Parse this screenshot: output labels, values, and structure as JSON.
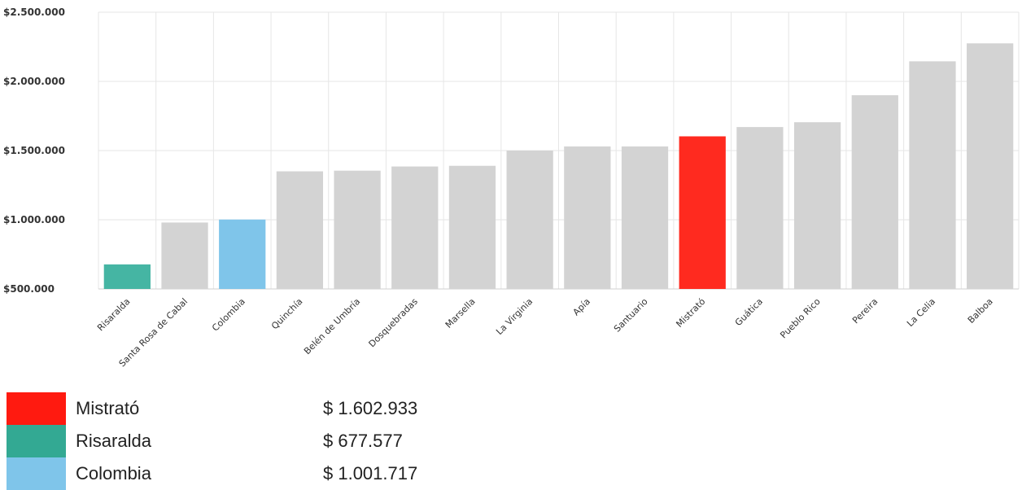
{
  "chart_data": {
    "type": "bar",
    "title": "",
    "xlabel": "",
    "ylabel": "",
    "ylim": [
      500000,
      2500000
    ],
    "yticks": [
      500000,
      1000000,
      1500000,
      2000000,
      2500000
    ],
    "ytick_labels": [
      "$500.000",
      "$1.000.000",
      "$1.500.000",
      "$2.000.000",
      "$2.500.000"
    ],
    "grid": true,
    "categories": [
      "Risaralda",
      "Santa Rosa de Cabal",
      "Colombia",
      "Quinchía",
      "Belén de Umbría",
      "Dosquebradas",
      "Marsella",
      "La Virginia",
      "Apía",
      "Santuario",
      "Mistrató",
      "Guática",
      "Pueblo Rico",
      "Pereira",
      "La Celia",
      "Balboa"
    ],
    "values": [
      677577,
      980000,
      1001717,
      1350000,
      1355000,
      1385000,
      1390000,
      1500000,
      1530000,
      1530000,
      1602933,
      1670000,
      1705000,
      1900000,
      2145000,
      2275000
    ],
    "colors": [
      "#45b5a3",
      "#d3d3d3",
      "#7fc5ea",
      "#d3d3d3",
      "#d3d3d3",
      "#d3d3d3",
      "#d3d3d3",
      "#d3d3d3",
      "#d3d3d3",
      "#d3d3d3",
      "#ff2a1f",
      "#d3d3d3",
      "#d3d3d3",
      "#d3d3d3",
      "#d3d3d3",
      "#d3d3d3"
    ]
  },
  "legend": {
    "items": [
      {
        "name": "Mistrató",
        "value": "$ 1.602.933",
        "color": "#ff1a10"
      },
      {
        "name": "Risaralda",
        "value": "$ 677.577",
        "color": "#33a993"
      },
      {
        "name": "Colombia",
        "value": "$ 1.001.717",
        "color": "#7fc5ea"
      }
    ]
  }
}
